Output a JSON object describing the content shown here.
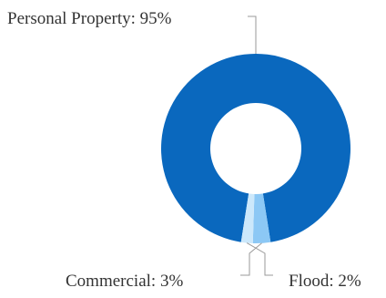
{
  "chart_data": {
    "type": "pie",
    "variant": "donut",
    "title": "",
    "slices": [
      {
        "label": "Personal Property",
        "value": 95,
        "color": "#0a68be",
        "display": "Personal Property: 95%"
      },
      {
        "label": "Commercial",
        "value": 3,
        "color": "#8cc8f5",
        "display": "Commercial: 3%"
      },
      {
        "label": "Flood",
        "value": 2,
        "color": "#cce8fb",
        "display": "Flood: 2%"
      }
    ],
    "legend": "none",
    "label_color": "#333333",
    "leader_color": "#9a9a9a"
  }
}
